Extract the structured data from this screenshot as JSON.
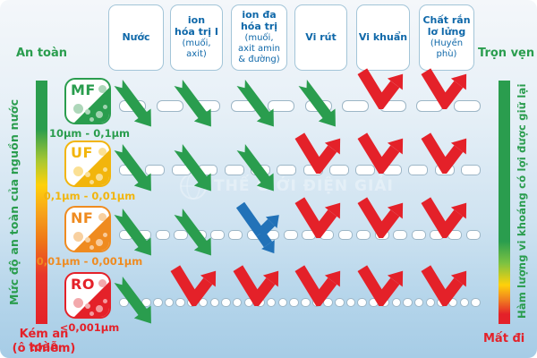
{
  "legend_columns": [
    {
      "id": "nuoc",
      "label": "Nước",
      "sub": ""
    },
    {
      "id": "ion-hoa-tri-1",
      "label": "ion\nhóa trị I",
      "sub": "(muối,\naxit)"
    },
    {
      "id": "ion-da-hoa-tri",
      "label": "ion đa\nhóa trị",
      "sub": "(muối,\naxit amin\n& đường)"
    },
    {
      "id": "vi-rut",
      "label": "Vi rút",
      "sub": ""
    },
    {
      "id": "vi-khuan",
      "label": "Vi khuẩn",
      "sub": ""
    },
    {
      "id": "chat-ran-lo-lung",
      "label": "Chất rắn\nlơ lửng",
      "sub": "(Huyền\nphù)"
    }
  ],
  "membranes": [
    {
      "id": "mf",
      "code": "MF",
      "pore_range": "10µm - 0,1µm",
      "color": "#2a9d4e",
      "light": "#aed7ba",
      "results": [
        "pass",
        "pass",
        "pass",
        "pass",
        "block",
        "block"
      ]
    },
    {
      "id": "uf",
      "code": "UF",
      "pore_range": "0,1µm - 0,01µm",
      "color": "#f2b50c",
      "light": "#fbe094",
      "results": [
        "pass",
        "pass",
        "pass",
        "block",
        "block",
        "block"
      ]
    },
    {
      "id": "nf",
      "code": "NF",
      "pore_range": "0,01µm - 0,001µm",
      "color": "#ef8b20",
      "light": "#f8d0a0",
      "results": [
        "pass",
        "pass",
        "partial",
        "block",
        "block",
        "block"
      ]
    },
    {
      "id": "ro",
      "code": "RO",
      "pore_range": "<0,001µm",
      "color": "#e42129",
      "light": "#f3a9ac",
      "results": [
        "pass",
        "block",
        "block",
        "block",
        "block",
        "block"
      ]
    }
  ],
  "left_axis": {
    "top_label": "An toàn",
    "bottom_label_1": "Kém an toàn",
    "bottom_label_2": "(ô nhiễm)",
    "axis_label": "Mức độ an toàn của nguồn nước"
  },
  "right_axis": {
    "top_label": "Trọn vẹn",
    "bottom_label": "Mất đi",
    "axis_label": "Hàm lượng vi khoáng có lợi được giữ lại"
  },
  "watermark": "THẾ GIỚI ĐIỆN GIẢI",
  "colors": {
    "header_text": "#0f68a9",
    "pass_arrow": "#2a9d4e",
    "block_arrow": "#e42129",
    "partial_arrow": "#2272b8",
    "safe_text": "#2a9d4e",
    "unsafe_text": "#e42129"
  }
}
